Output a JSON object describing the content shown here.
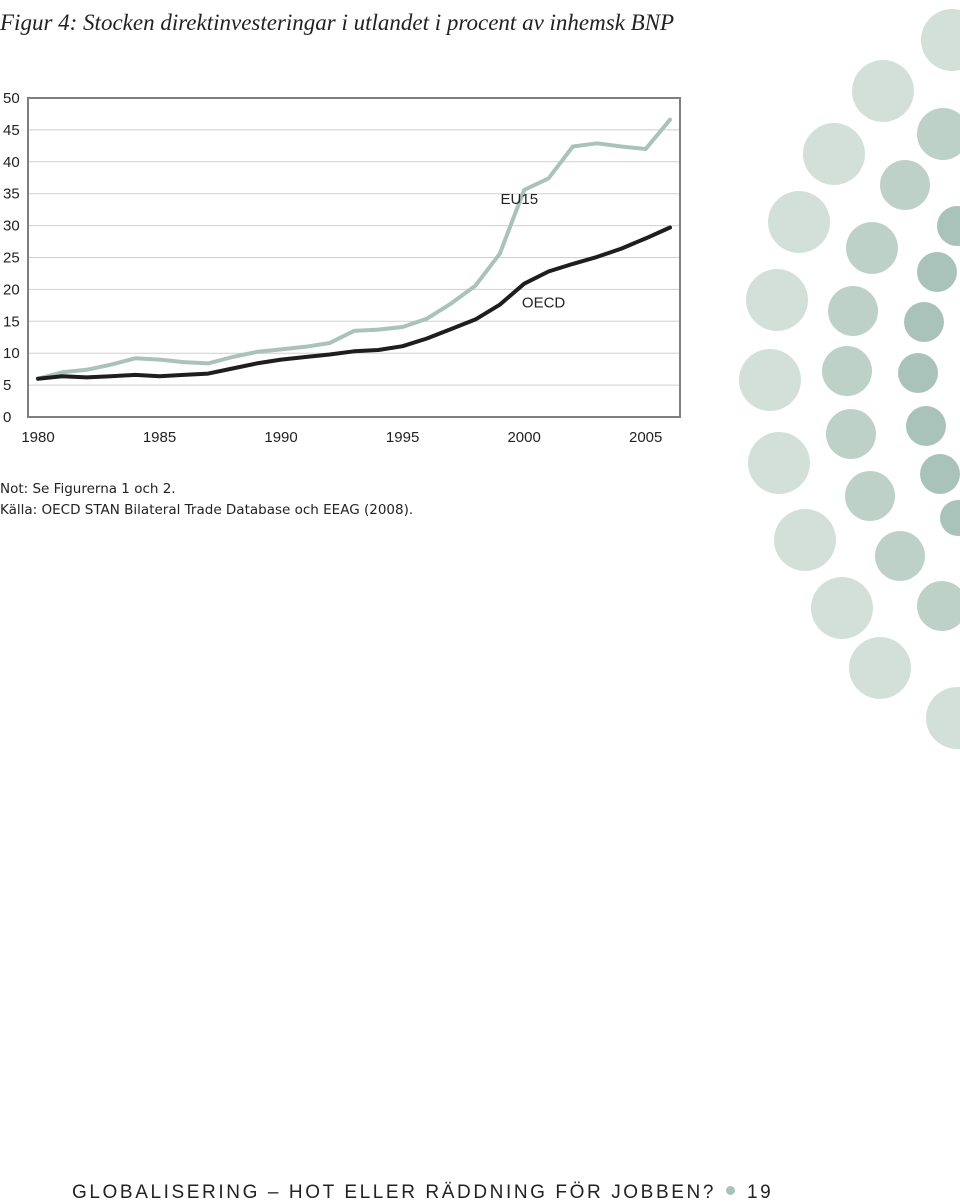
{
  "figure": {
    "title": "Figur 4: Stocken direktinvesteringar i utlandet i procent av inhemsk BNP"
  },
  "chart_data": {
    "type": "line",
    "x": [
      1980,
      1981,
      1982,
      1983,
      1984,
      1985,
      1986,
      1987,
      1988,
      1989,
      1990,
      1991,
      1992,
      1993,
      1994,
      1995,
      1996,
      1997,
      1998,
      1999,
      2000,
      2001,
      2002,
      2003,
      2004,
      2005,
      2006
    ],
    "series": [
      {
        "name": "EU15",
        "color": "#a9c3ba",
        "values": [
          6.0,
          7.0,
          7.4,
          8.2,
          9.2,
          9.0,
          8.6,
          8.4,
          9.4,
          10.2,
          10.6,
          11.0,
          11.6,
          13.5,
          13.7,
          14.1,
          15.4,
          17.8,
          20.6,
          25.6,
          35.6,
          37.4,
          42.4,
          42.9,
          42.4,
          42.0,
          46.6
        ]
      },
      {
        "name": "OECD",
        "color": "#1e1e1e",
        "values": [
          6.0,
          6.4,
          6.2,
          6.4,
          6.6,
          6.4,
          6.6,
          6.8,
          7.6,
          8.4,
          9.0,
          9.4,
          9.8,
          10.3,
          10.5,
          11.1,
          12.3,
          13.8,
          15.3,
          17.6,
          20.9,
          22.8,
          24.0,
          25.1,
          26.4,
          28.0,
          29.7
        ]
      }
    ],
    "ylim": [
      0,
      50
    ],
    "y_ticks": [
      0,
      5,
      10,
      15,
      20,
      25,
      30,
      35,
      40,
      45,
      50
    ],
    "x_ticks": [
      1980,
      1985,
      1990,
      1995,
      2000,
      2005
    ],
    "grid": true
  },
  "notes": {
    "note": "Not: Se Figurerna 1 och 2.",
    "source": "Källa: OECD STAN Bilateral Trade Database och EEAG (2008)."
  },
  "footer": {
    "text": "GLOBALISERING – HOT ELLER RÄDDNING FÖR JOBBEN?",
    "page_number": "19"
  }
}
